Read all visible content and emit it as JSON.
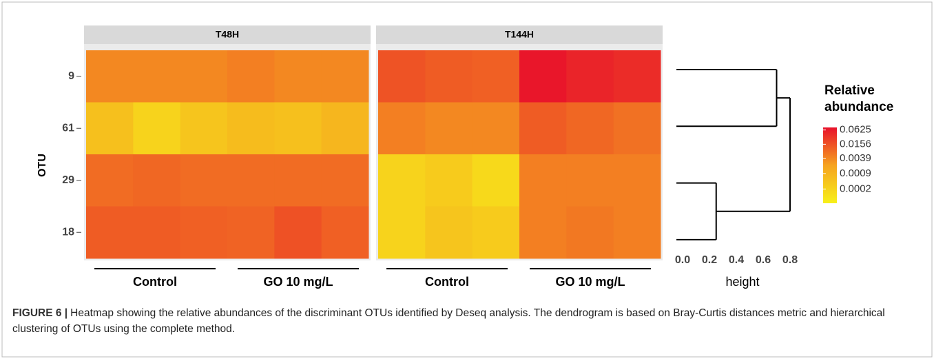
{
  "chart_data": {
    "type": "heatmap",
    "ylabel": "OTU",
    "rows": [
      "9",
      "61",
      "29",
      "18"
    ],
    "panels": [
      {
        "title": "T48H",
        "groups": [
          "Control",
          "GO 10 mg/L"
        ],
        "values": [
          [
            0.004,
            0.004,
            0.004,
            0.005,
            0.004,
            0.004
          ],
          [
            0.0005,
            0.0002,
            0.0004,
            0.0006,
            0.0005,
            0.0008
          ],
          [
            0.008,
            0.009,
            0.008,
            0.008,
            0.008,
            0.008
          ],
          [
            0.012,
            0.012,
            0.011,
            0.01,
            0.016,
            0.011
          ]
        ]
      },
      {
        "title": "T144H",
        "groups": [
          "Control",
          "GO 10 mg/L"
        ],
        "values": [
          [
            0.015,
            0.012,
            0.011,
            0.07,
            0.05,
            0.04
          ],
          [
            0.005,
            0.004,
            0.004,
            0.012,
            0.009,
            0.007
          ],
          [
            0.0002,
            0.0003,
            0.00015,
            0.005,
            0.005,
            0.005
          ],
          [
            0.0002,
            0.0004,
            0.0003,
            0.005,
            0.006,
            0.005
          ]
        ]
      }
    ],
    "colorscale": {
      "title": "Relative abundance",
      "log": true,
      "lim": [
        5e-05,
        0.08
      ],
      "colors": [
        "#f7f01a",
        "#f6a31f",
        "#e8112a"
      ],
      "ticks": [
        0.0625,
        0.0156,
        0.0039,
        0.0009,
        0.0002
      ]
    },
    "dendrogram": {
      "xlabel": "height",
      "xlim": [
        0,
        0.8
      ],
      "xticks": [
        {
          "value": 0,
          "label": "0.0"
        },
        0.2,
        0.4,
        0.6,
        0.8
      ],
      "merges": [
        {
          "members": [
            0,
            1
          ],
          "height": 0.7
        },
        {
          "members": [
            2,
            3
          ],
          "height": 0.25
        },
        {
          "members": [
            0,
            1,
            2,
            3
          ],
          "height": 0.8
        }
      ]
    }
  },
  "caption": {
    "label": "FIGURE 6 |",
    "text": "Heatmap showing the relative abundances of the discriminant OTUs identified by Deseq analysis. The dendrogram is based on Bray-Curtis distances metric and hierarchical clustering of OTUs using the complete method."
  }
}
